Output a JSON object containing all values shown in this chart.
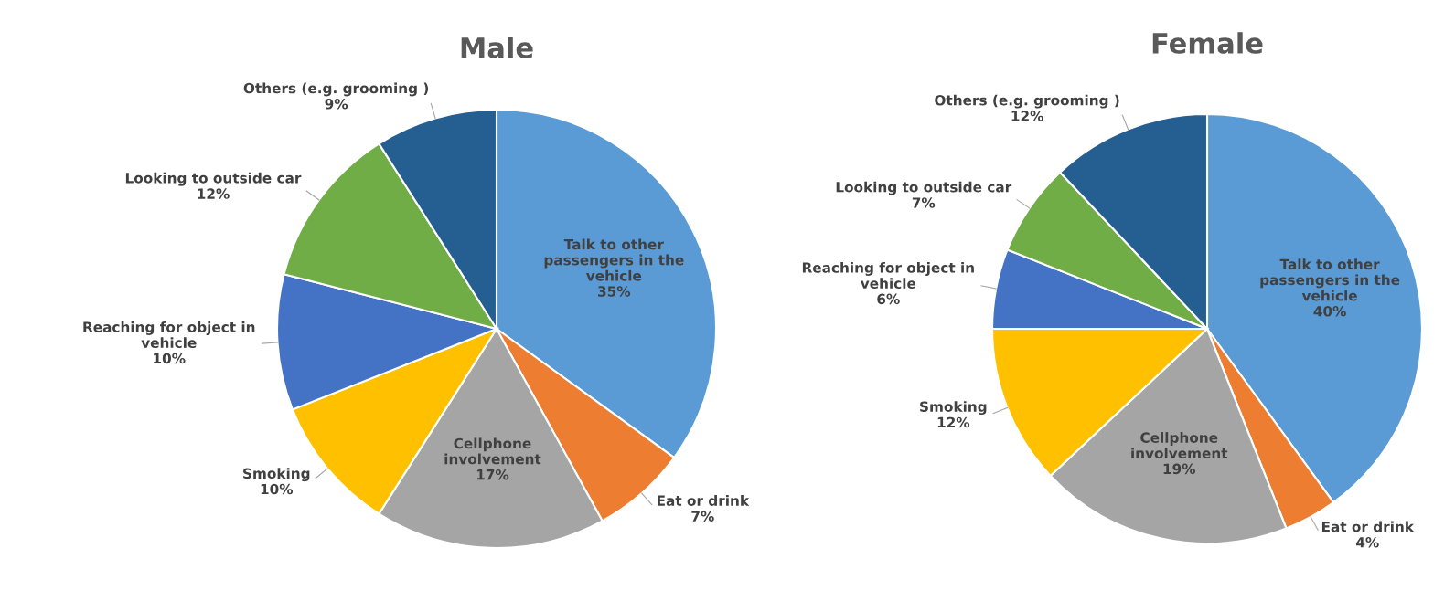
{
  "chart_data": [
    {
      "type": "pie",
      "title": "Male",
      "categories": [
        "Talk to other passengers in the vehicle",
        "Eat or drink",
        "Cellphone involvement",
        "Smoking",
        "Reaching for object in vehicle",
        "Looking to outside car",
        "Others (e.g. grooming )"
      ],
      "values": [
        35,
        7,
        17,
        10,
        10,
        12,
        9
      ],
      "value_labels": [
        "35%",
        "7%",
        "17%",
        "10%",
        "10%",
        "12%",
        "9%"
      ],
      "colors": [
        "#5b9bd5",
        "#ed7d31",
        "#a5a5a5",
        "#ffc000",
        "#4472c4",
        "#70ad47",
        "#255e91"
      ],
      "data_labels": true
    },
    {
      "type": "pie",
      "title": "Female",
      "categories": [
        "Talk to other passengers in the vehicle",
        "Eat or drink",
        "Cellphone involvement",
        "Smoking",
        "Reaching for object in vehicle",
        "Looking to outside car",
        "Others (e.g. grooming )"
      ],
      "values": [
        40,
        4,
        19,
        12,
        6,
        7,
        12
      ],
      "value_labels": [
        "40%",
        "4%",
        "19%",
        "12%",
        "6%",
        "7%",
        "12%"
      ],
      "colors": [
        "#5b9bd5",
        "#ed7d31",
        "#a5a5a5",
        "#ffc000",
        "#4472c4",
        "#70ad47",
        "#255e91"
      ],
      "data_labels": true
    }
  ]
}
